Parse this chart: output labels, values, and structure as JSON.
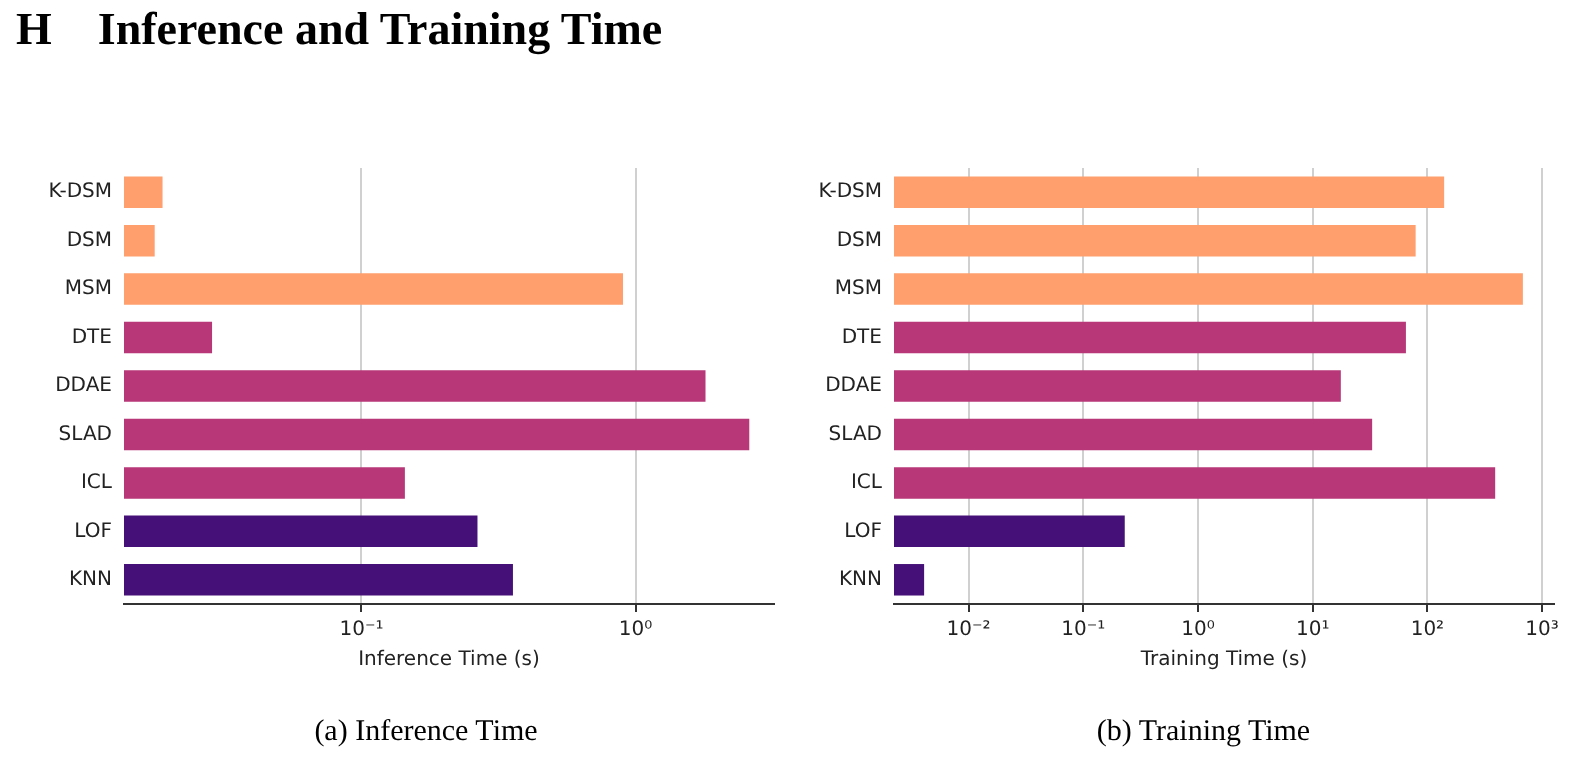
{
  "chart_data": [
    {
      "type": "bar",
      "title": "H    Inference and Training Time",
      "orientation": "horizontal",
      "log": "x",
      "grid": "x",
      "legend": false,
      "xlabel": "Inference Time (s)",
      "annotations": [
        "(a) Inference Time"
      ],
      "categories": [
        "K-DSM",
        "DSM",
        "MSM",
        "DTE",
        "DDAE",
        "SLAD",
        "ICL",
        "LOF",
        "KNN"
      ],
      "values": [
        0.0188,
        0.0176,
        0.9,
        0.0285,
        1.8,
        2.6,
        0.144,
        0.265,
        0.357
      ],
      "colors": [
        "#fe9f6d",
        "#fe9f6d",
        "#fe9f6d",
        "#b73779",
        "#b73779",
        "#b73779",
        "#b73779",
        "#451077",
        "#451077"
      ],
      "xlim": [
        0.0136,
        3.2
      ],
      "xticks": [
        {
          "value": 0.1,
          "label": "10⁻¹"
        },
        {
          "value": 1,
          "label": "10⁰"
        }
      ]
    },
    {
      "type": "bar",
      "orientation": "horizontal",
      "log": "x",
      "grid": "x",
      "legend": false,
      "xlabel": "Training Time (s)",
      "annotations": [
        "(b) Training Time"
      ],
      "categories": [
        "K-DSM",
        "DSM",
        "MSM",
        "DTE",
        "DDAE",
        "SLAD",
        "ICL",
        "LOF",
        "KNN"
      ],
      "values": [
        140,
        79,
        680,
        65,
        17.6,
        33,
        390,
        0.23,
        0.0041
      ],
      "colors": [
        "#fe9f6d",
        "#fe9f6d",
        "#fe9f6d",
        "#b73779",
        "#b73779",
        "#b73779",
        "#b73779",
        "#451077",
        "#451077"
      ],
      "xlim": [
        0.00224,
        1270
      ],
      "xticks": [
        {
          "value": 0.01,
          "label": "10⁻²"
        },
        {
          "value": 0.1,
          "label": "10⁻¹"
        },
        {
          "value": 1,
          "label": "10⁰"
        },
        {
          "value": 10,
          "label": "10¹"
        },
        {
          "value": 100,
          "label": "10²"
        },
        {
          "value": 1000,
          "label": "10³"
        }
      ]
    }
  ]
}
